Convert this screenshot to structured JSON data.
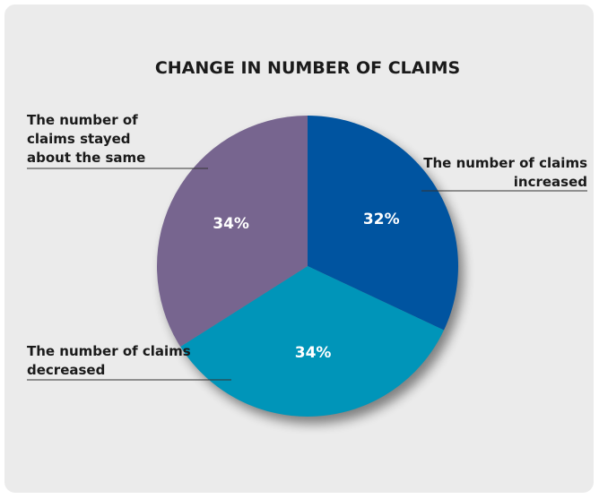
{
  "chart_data": {
    "type": "pie",
    "title": "CHANGE IN NUMBER OF CLAIMS",
    "categories": [
      "The number of claims increased",
      "The number of claims decreased",
      "The number of claims stayed about the same"
    ],
    "values": [
      32,
      34,
      34
    ],
    "value_labels": [
      "32%",
      "34%",
      "34%"
    ],
    "colors": [
      "#0054a0",
      "#0095b9",
      "#77658f"
    ]
  }
}
